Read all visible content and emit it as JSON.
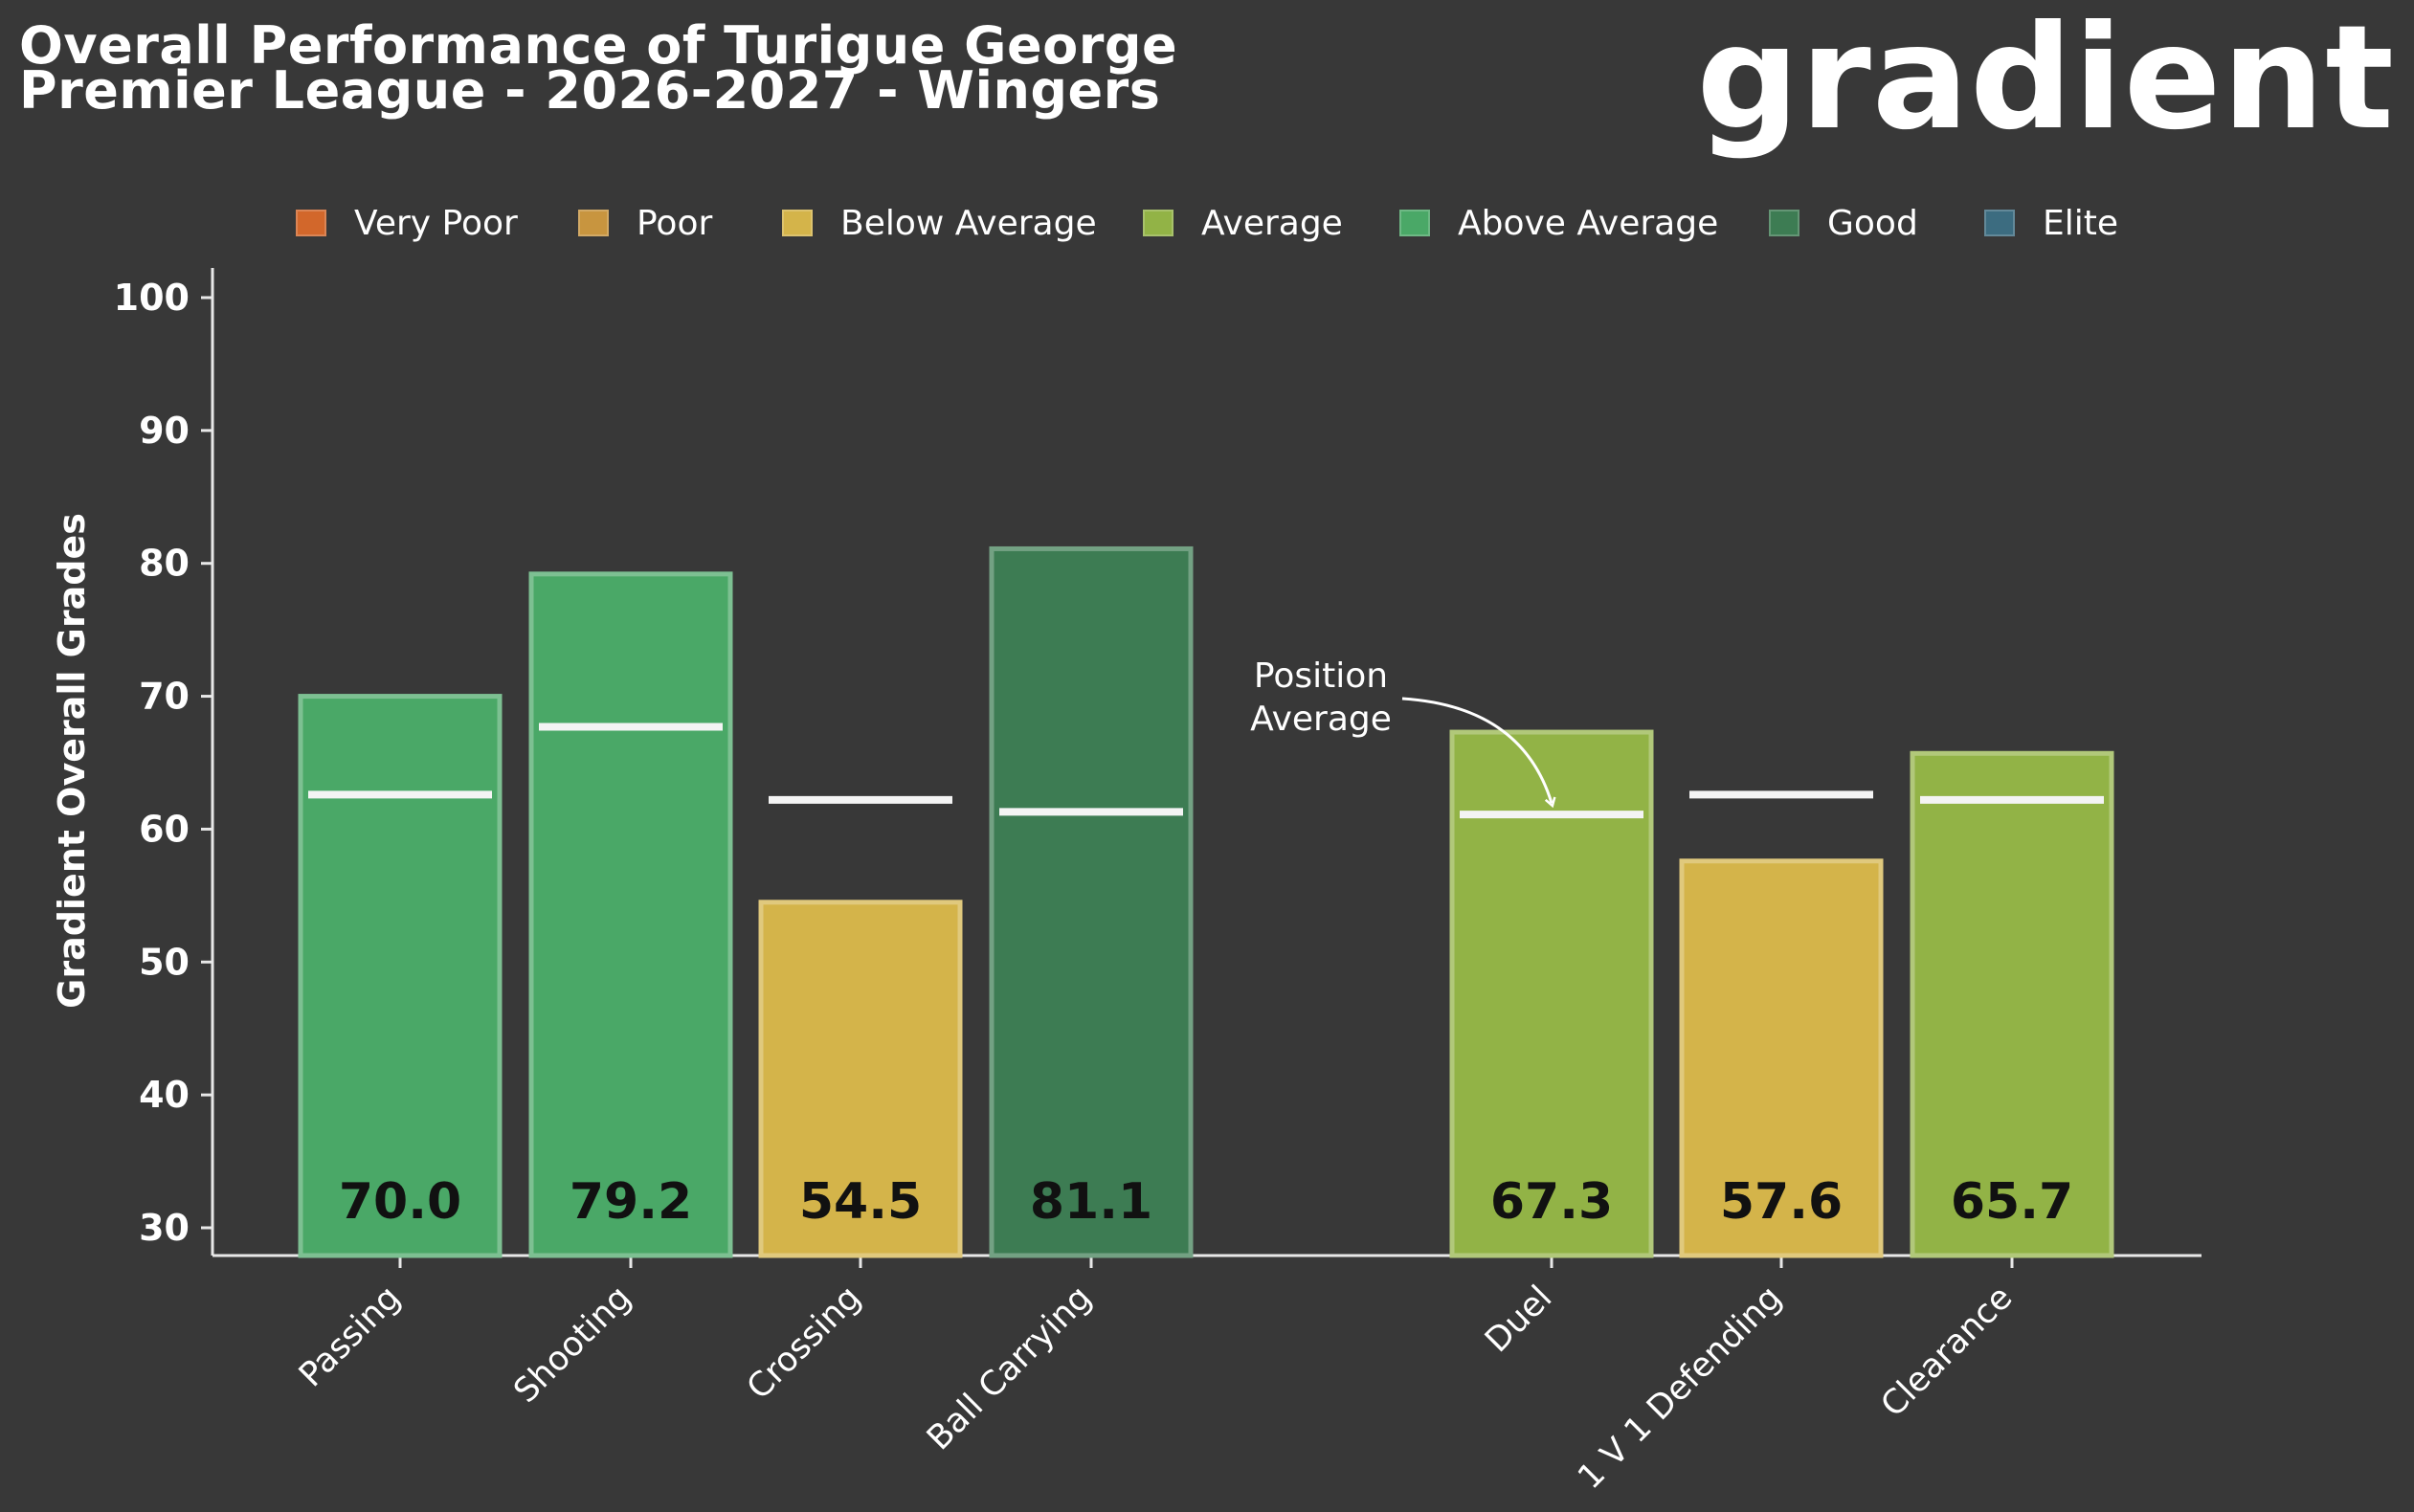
{
  "header": {
    "title_line1": "Overall Performance of Turigue George",
    "title_line2": "Premier League - 2026-2027 - Wingers",
    "logo_text": "gradient"
  },
  "chart_data": {
    "type": "bar",
    "ylabel": "Gradient Overall Grades",
    "ylim": [
      30,
      100
    ],
    "yticks": [
      30,
      40,
      50,
      60,
      70,
      80,
      90,
      100
    ],
    "legend_position": "top",
    "legend": [
      {
        "label": "Very Poor",
        "color": "#d2672b"
      },
      {
        "label": "Poor",
        "color": "#c8953f"
      },
      {
        "label": "Below Average",
        "color": "#d4b44a"
      },
      {
        "label": "Average",
        "color": "#92b346"
      },
      {
        "label": "Above Average",
        "color": "#4aa867"
      },
      {
        "label": "Good",
        "color": "#3d7c53"
      },
      {
        "label": "Elite",
        "color": "#3c6c80"
      }
    ],
    "groups": [
      {
        "bars": [
          {
            "category": "Passing",
            "value": 70.0,
            "label": "70.0",
            "position_average": 62.6,
            "rating": "Above Average"
          },
          {
            "category": "Shooting",
            "value": 79.2,
            "label": "79.2",
            "position_average": 67.7,
            "rating": "Above Average"
          },
          {
            "category": "Crossing",
            "value": 54.5,
            "label": "54.5",
            "position_average": 62.2,
            "rating": "Below Average"
          },
          {
            "category": "Ball Carrying",
            "value": 81.1,
            "label": "81.1",
            "position_average": 61.3,
            "rating": "Good"
          }
        ]
      },
      {
        "bars": [
          {
            "category": "Duel",
            "value": 67.3,
            "label": "67.3",
            "position_average": 61.1,
            "rating": "Average"
          },
          {
            "category": "1 V 1 Defending",
            "value": 57.6,
            "label": "57.6",
            "position_average": 62.6,
            "rating": "Below Average"
          },
          {
            "category": "Clearance",
            "value": 65.7,
            "label": "65.7",
            "position_average": 62.2,
            "rating": "Average"
          }
        ]
      }
    ],
    "annotation": {
      "text_line1": "Position",
      "text_line2": "Average",
      "target_category": "Duel"
    },
    "colors": {
      "background": "#383838",
      "axis": "#e8e8e8",
      "text": "#ffffff",
      "value_label": "#111111",
      "average_line": "#f4f4f4"
    }
  }
}
